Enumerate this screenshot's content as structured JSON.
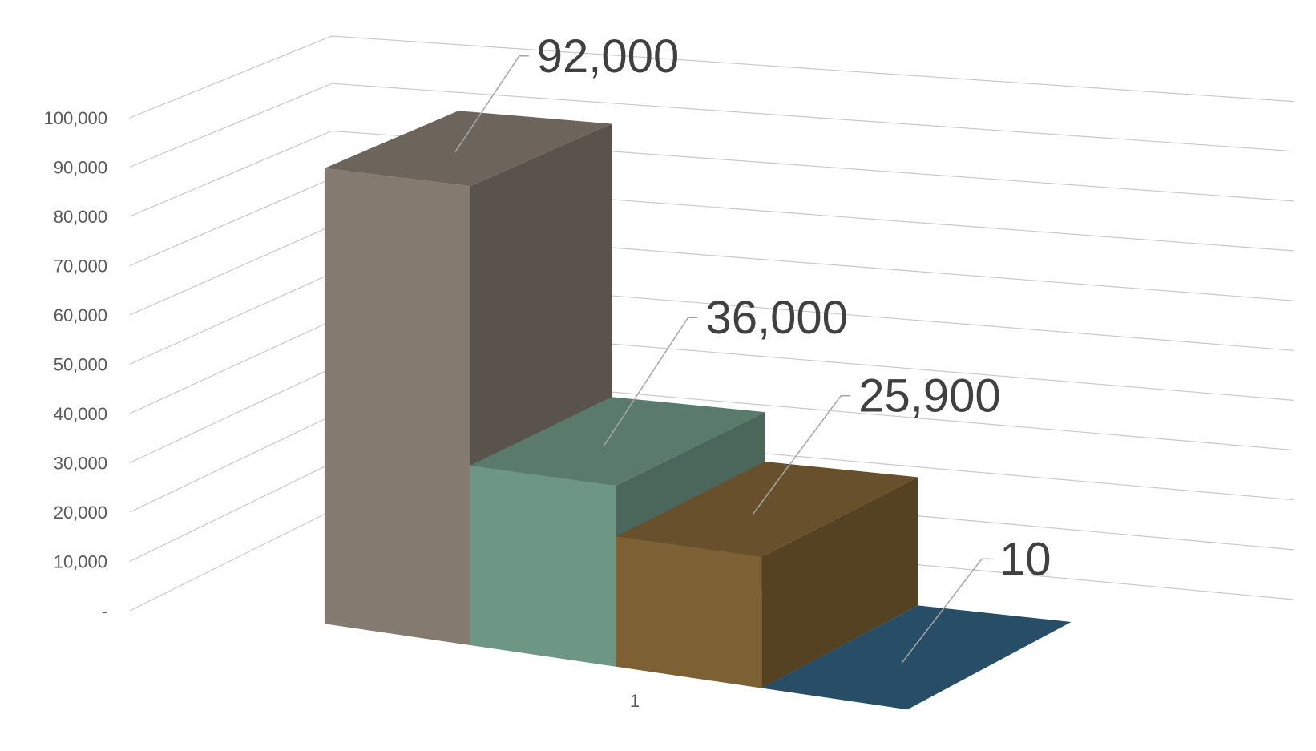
{
  "chart_data": {
    "type": "bar",
    "categories": [
      "1"
    ],
    "series": [
      {
        "values": [
          92000
        ],
        "color": "#857a70"
      },
      {
        "values": [
          36000
        ],
        "color": "#6e9684"
      },
      {
        "values": [
          25900
        ],
        "color": "#7d6134"
      },
      {
        "values": [
          10
        ],
        "color": "#2f5e7e"
      }
    ],
    "data_labels": [
      "92,000",
      "36,000",
      "25,900",
      "10"
    ],
    "yticks": [
      "-",
      "10,000",
      "20,000",
      "30,000",
      "40,000",
      "50,000",
      "60,000",
      "70,000",
      "80,000",
      "90,000",
      "100,000"
    ],
    "ylim": [
      0,
      100000
    ],
    "grid": true,
    "three_d": true,
    "legend": "none"
  }
}
